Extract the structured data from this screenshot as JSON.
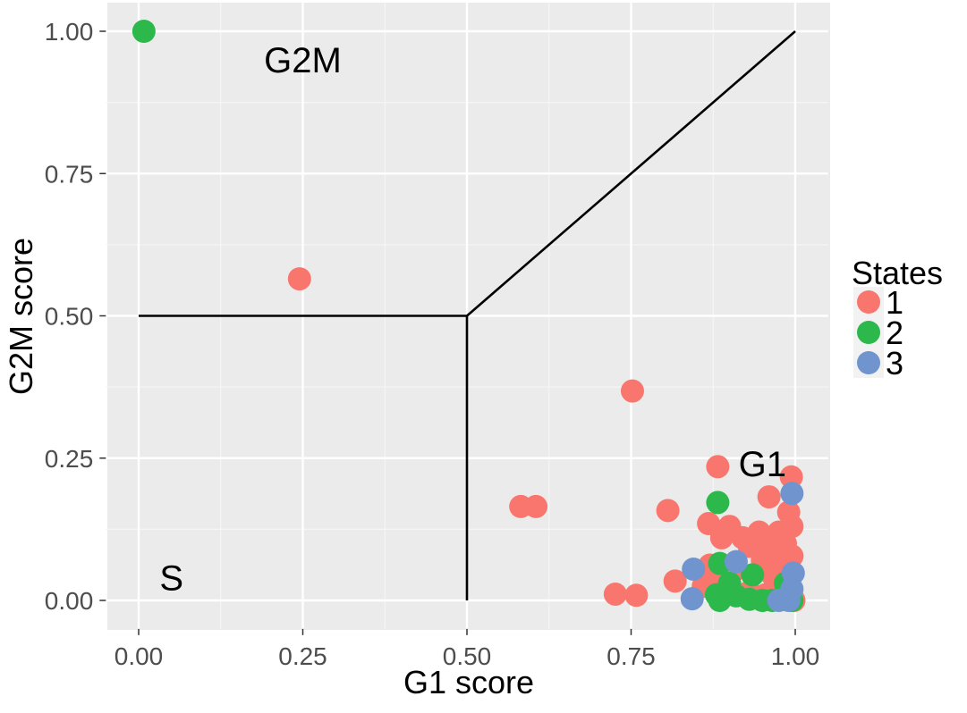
{
  "chart_data": {
    "type": "scatter",
    "title": "",
    "xlabel": "G1 score",
    "ylabel": "G2M score",
    "xlim": [
      -0.05,
      1.05
    ],
    "ylim": [
      -0.05,
      1.05
    ],
    "x_ticks": [
      0.0,
      0.25,
      0.5,
      0.75,
      1.0
    ],
    "x_tick_labels": [
      "0.00",
      "0.25",
      "0.50",
      "0.75",
      "1.00"
    ],
    "y_ticks": [
      0.0,
      0.25,
      0.5,
      0.75,
      1.0
    ],
    "y_tick_labels": [
      "0.00",
      "0.25",
      "0.50",
      "0.75",
      "1.00"
    ],
    "grid": true,
    "background": "#ebebeb",
    "legend": {
      "title": "States",
      "placement": "right",
      "entries": [
        {
          "label": "1",
          "color": "#f8766d"
        },
        {
          "label": "2",
          "color": "#2db84b"
        },
        {
          "label": "3",
          "color": "#7094cd"
        }
      ]
    },
    "region_labels": [
      {
        "text": "G2M",
        "x": 0.25,
        "y": 0.95
      },
      {
        "text": "G1",
        "x": 0.95,
        "y": 0.24
      },
      {
        "text": "S",
        "x": 0.05,
        "y": 0.04
      }
    ],
    "boundary_lines": [
      {
        "x": [
          0.0,
          0.5
        ],
        "y": [
          0.5,
          0.5
        ]
      },
      {
        "x": [
          0.5,
          0.5
        ],
        "y": [
          0.0,
          0.5
        ]
      },
      {
        "x": [
          0.5,
          1.0
        ],
        "y": [
          0.5,
          1.0
        ]
      }
    ],
    "series": [
      {
        "name": "1",
        "color": "#f8766d",
        "points": [
          [
            0.245,
            0.565
          ],
          [
            0.752,
            0.368
          ],
          [
            0.582,
            0.165
          ],
          [
            0.605,
            0.165
          ],
          [
            0.806,
            0.158
          ],
          [
            0.882,
            0.235
          ],
          [
            0.994,
            0.217
          ],
          [
            0.96,
            0.182
          ],
          [
            0.726,
            0.011
          ],
          [
            0.758,
            0.009
          ],
          [
            0.817,
            0.034
          ],
          [
            0.868,
            0.135
          ],
          [
            0.9,
            0.13
          ],
          [
            0.888,
            0.11
          ],
          [
            0.92,
            0.11
          ],
          [
            0.945,
            0.12
          ],
          [
            0.96,
            0.11
          ],
          [
            0.975,
            0.12
          ],
          [
            0.99,
            0.155
          ],
          [
            0.995,
            0.13
          ],
          [
            0.93,
            0.095
          ],
          [
            0.95,
            0.09
          ],
          [
            0.97,
            0.085
          ],
          [
            0.985,
            0.1
          ],
          [
            0.995,
            0.078
          ],
          [
            0.95,
            0.07
          ],
          [
            0.97,
            0.06
          ],
          [
            0.985,
            0.06
          ],
          [
            0.965,
            0.045
          ],
          [
            0.985,
            0.04
          ],
          [
            0.91,
            0.055
          ],
          [
            0.87,
            0.062
          ],
          [
            0.86,
            0.025
          ],
          [
            0.88,
            0.03
          ],
          [
            0.9,
            0.02
          ],
          [
            0.93,
            0.015
          ],
          [
            0.955,
            0.01
          ],
          [
            0.975,
            0.008
          ],
          [
            0.99,
            0.005
          ],
          [
            0.997,
            0.002
          ],
          [
            0.998,
            0.0
          ]
        ]
      },
      {
        "name": "2",
        "color": "#2db84b",
        "points": [
          [
            0.008,
            1.0
          ],
          [
            0.882,
            0.172
          ],
          [
            0.885,
            0.065
          ],
          [
            0.935,
            0.045
          ],
          [
            0.9,
            0.03
          ],
          [
            0.88,
            0.01
          ],
          [
            0.885,
            0.0
          ],
          [
            0.91,
            0.008
          ],
          [
            0.93,
            0.002
          ],
          [
            0.95,
            0.0
          ],
          [
            0.965,
            0.0
          ],
          [
            0.985,
            0.03
          ],
          [
            0.99,
            0.008
          ],
          [
            0.995,
            0.0
          ]
        ]
      },
      {
        "name": "3",
        "color": "#7094cd",
        "points": [
          [
            0.843,
            0.003
          ],
          [
            0.845,
            0.055
          ],
          [
            0.91,
            0.068
          ],
          [
            0.995,
            0.188
          ],
          [
            0.997,
            0.048
          ],
          [
            0.995,
            0.02
          ],
          [
            0.99,
            0.0
          ],
          [
            0.975,
            0.0
          ]
        ]
      }
    ]
  }
}
